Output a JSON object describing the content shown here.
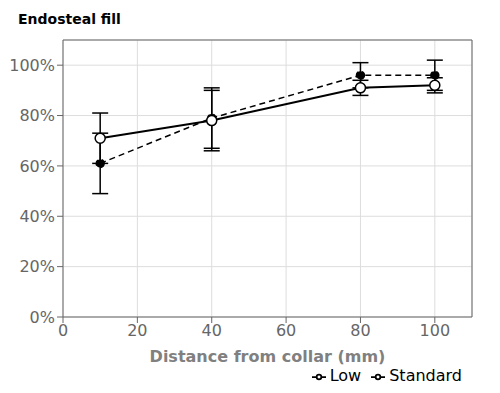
{
  "chart_data": {
    "type": "line",
    "xlabel": "Distance from collar (mm)",
    "ylabel": "Endosteal fill",
    "x": [
      10,
      40,
      80,
      100
    ],
    "series": [
      {
        "name": "Standard",
        "color": "#000000",
        "line_style": "dashed",
        "marker": "circle",
        "values": [
          0.61,
          0.79,
          0.96,
          0.96
        ],
        "errors": [
          0.12,
          0.12,
          0.05,
          0.06
        ]
      },
      {
        "name": "Low",
        "color": "#000000",
        "line_style": "solid",
        "marker": "open_circle",
        "values": [
          0.71,
          0.78,
          0.91,
          0.92
        ],
        "errors": [
          0.1,
          0.12,
          0.03,
          0.03
        ]
      }
    ],
    "xlim": [
      0,
      110
    ],
    "ylim": [
      0.0,
      1.1
    ],
    "xticks": [
      0,
      20,
      40,
      60,
      80,
      100
    ],
    "yticks": [
      {
        "value": 0.0,
        "label": "0%"
      },
      {
        "value": 0.2,
        "label": "20%"
      },
      {
        "value": 0.4,
        "label": "40%"
      },
      {
        "value": 0.6,
        "label": "60%"
      },
      {
        "value": 0.8,
        "label": "80%"
      },
      {
        "value": 1.0,
        "label": "100%"
      }
    ],
    "grid": true,
    "legend": "lower right"
  }
}
